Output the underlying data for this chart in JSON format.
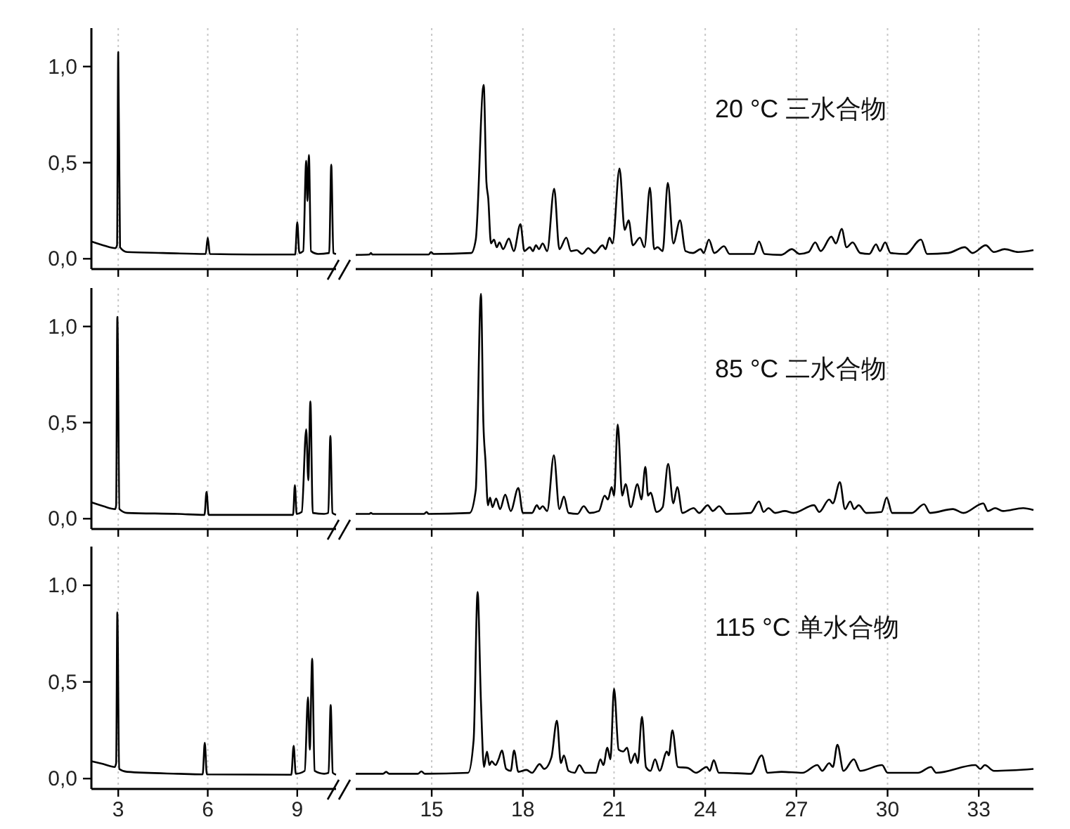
{
  "chart_data": [
    {
      "type": "line",
      "xlim": [
        2.1,
        10.3
      ],
      "ylim": [
        -0.05,
        1.2
      ],
      "xticks": [
        3,
        6,
        9
      ],
      "yticks": [
        {
          "value": 0,
          "label": "0,0"
        },
        {
          "value": 0.5,
          "label": "0,5"
        },
        {
          "value": 1,
          "label": "1,0"
        }
      ],
      "grid": "x",
      "tick_labels": "y",
      "series": [
        {
          "color": "#000000",
          "x": [
            2.1,
            2.5,
            2.9,
            2.96,
            3.0,
            3.06,
            3.3,
            4.5,
            5.93,
            6.0,
            6.07,
            7.5,
            8.93,
            9.0,
            9.07,
            9.2,
            9.3,
            9.34,
            9.39,
            9.46,
            9.7,
            10.07,
            10.14,
            10.21,
            10.3
          ],
          "values": [
            0.09,
            0.07,
            0.055,
            0.07,
            1.075,
            0.06,
            0.035,
            0.03,
            0.025,
            0.11,
            0.025,
            0.022,
            0.022,
            0.19,
            0.03,
            0.04,
            0.51,
            0.3,
            0.54,
            0.04,
            0.025,
            0.03,
            0.49,
            0.03,
            0.025
          ]
        }
      ]
    },
    {
      "type": "line",
      "xlim": [
        12.5,
        34.8
      ],
      "ylim": [
        -0.05,
        1.2
      ],
      "xticks": [
        15,
        18,
        21,
        24,
        27,
        30,
        33
      ],
      "grid": "x",
      "tick_labels": false,
      "annotations": [
        "20 °C 三水合物"
      ],
      "series": [
        {
          "color": "#000000",
          "x": [
            12.5,
            12.95,
            13.0,
            13.05,
            14.9,
            14.98,
            15.06,
            16.3,
            16.45,
            16.71,
            16.8,
            16.86,
            16.95,
            17.05,
            17.14,
            17.23,
            17.35,
            17.54,
            17.7,
            17.92,
            18.05,
            18.23,
            18.33,
            18.43,
            18.53,
            18.65,
            18.8,
            19.03,
            19.2,
            19.43,
            19.58,
            19.77,
            19.95,
            20.15,
            20.35,
            20.62,
            20.72,
            20.85,
            20.95,
            21.18,
            21.35,
            21.48,
            21.62,
            21.85,
            22.0,
            22.18,
            22.32,
            22.43,
            22.6,
            22.77,
            22.95,
            23.17,
            23.35,
            23.6,
            23.85,
            23.95,
            24.12,
            24.3,
            24.62,
            24.8,
            25.6,
            25.77,
            25.95,
            26.5,
            26.85,
            27.1,
            27.4,
            27.62,
            27.8,
            28.15,
            28.3,
            28.49,
            28.65,
            28.85,
            29.1,
            29.4,
            29.62,
            29.75,
            29.92,
            30.1,
            30.6,
            31.1,
            31.3,
            32.0,
            32.54,
            32.8,
            33.23,
            33.5,
            33.85,
            34.3,
            34.8
          ],
          "values": [
            0.02,
            0.022,
            0.03,
            0.022,
            0.022,
            0.035,
            0.025,
            0.03,
            0.1,
            0.905,
            0.4,
            0.315,
            0.08,
            0.1,
            0.06,
            0.085,
            0.05,
            0.105,
            0.04,
            0.18,
            0.04,
            0.06,
            0.04,
            0.07,
            0.05,
            0.08,
            0.04,
            0.365,
            0.05,
            0.11,
            0.04,
            0.045,
            0.025,
            0.055,
            0.03,
            0.07,
            0.05,
            0.11,
            0.08,
            0.47,
            0.15,
            0.2,
            0.07,
            0.11,
            0.06,
            0.37,
            0.05,
            0.06,
            0.04,
            0.395,
            0.08,
            0.2,
            0.04,
            0.03,
            0.05,
            0.03,
            0.1,
            0.03,
            0.065,
            0.025,
            0.025,
            0.09,
            0.025,
            0.02,
            0.05,
            0.025,
            0.035,
            0.085,
            0.04,
            0.115,
            0.08,
            0.155,
            0.06,
            0.085,
            0.03,
            0.025,
            0.075,
            0.04,
            0.085,
            0.03,
            0.025,
            0.1,
            0.025,
            0.03,
            0.06,
            0.03,
            0.07,
            0.035,
            0.05,
            0.035,
            0.045
          ]
        }
      ]
    },
    {
      "type": "line",
      "xlim": [
        2.1,
        10.3
      ],
      "ylim": [
        -0.05,
        1.2
      ],
      "xticks": [
        3,
        6,
        9
      ],
      "yticks": [
        {
          "value": 0,
          "label": "0,0"
        },
        {
          "value": 0.5,
          "label": "0,5"
        },
        {
          "value": 1,
          "label": "1,0"
        }
      ],
      "grid": "x",
      "tick_labels": "y",
      "series": [
        {
          "color": "#000000",
          "x": [
            2.1,
            2.5,
            2.9,
            2.93,
            2.97,
            3.04,
            3.3,
            5.0,
            5.89,
            5.96,
            6.03,
            8.8,
            8.86,
            8.92,
            8.98,
            9.15,
            9.3,
            9.37,
            9.44,
            9.52,
            9.9,
            10.04,
            10.11,
            10.18,
            10.3
          ],
          "values": [
            0.085,
            0.065,
            0.05,
            0.07,
            1.05,
            0.05,
            0.03,
            0.025,
            0.02,
            0.14,
            0.02,
            0.02,
            0.02,
            0.175,
            0.025,
            0.035,
            0.465,
            0.2,
            0.61,
            0.03,
            0.025,
            0.03,
            0.43,
            0.03,
            0.02
          ]
        }
      ]
    },
    {
      "type": "line",
      "xlim": [
        12.5,
        34.8
      ],
      "ylim": [
        -0.05,
        1.2
      ],
      "xticks": [
        15,
        18,
        21,
        24,
        27,
        30,
        33
      ],
      "grid": "x",
      "tick_labels": false,
      "annotations": [
        "85 °C 二水合物"
      ],
      "series": [
        {
          "color": "#000000",
          "x": [
            12.5,
            12.95,
            13.0,
            13.06,
            14.75,
            14.83,
            14.9,
            16.25,
            16.45,
            16.62,
            16.7,
            16.77,
            16.85,
            16.92,
            17.0,
            17.12,
            17.25,
            17.42,
            17.6,
            17.85,
            18.0,
            18.3,
            18.46,
            18.55,
            18.65,
            18.8,
            19.02,
            19.2,
            19.35,
            19.5,
            19.8,
            20.0,
            20.2,
            20.5,
            20.69,
            20.8,
            20.92,
            21.0,
            21.12,
            21.27,
            21.38,
            21.55,
            21.77,
            21.9,
            22.03,
            22.12,
            22.2,
            22.4,
            22.6,
            22.78,
            22.95,
            23.08,
            23.25,
            23.62,
            23.8,
            24.08,
            24.25,
            24.46,
            24.7,
            25.5,
            25.77,
            25.92,
            26.08,
            26.3,
            26.62,
            26.9,
            27.58,
            27.75,
            28.08,
            28.2,
            28.43,
            28.6,
            28.77,
            28.9,
            29.05,
            29.3,
            29.8,
            29.97,
            30.15,
            30.8,
            31.2,
            31.4,
            32.15,
            32.5,
            33.15,
            33.3,
            33.54,
            33.8,
            34.46,
            34.8
          ],
          "values": [
            0.025,
            0.025,
            0.03,
            0.025,
            0.025,
            0.035,
            0.025,
            0.03,
            0.15,
            1.17,
            0.5,
            0.3,
            0.07,
            0.11,
            0.06,
            0.105,
            0.05,
            0.125,
            0.04,
            0.16,
            0.03,
            0.03,
            0.07,
            0.05,
            0.065,
            0.04,
            0.33,
            0.05,
            0.115,
            0.03,
            0.025,
            0.065,
            0.03,
            0.04,
            0.12,
            0.1,
            0.165,
            0.12,
            0.49,
            0.12,
            0.18,
            0.06,
            0.18,
            0.1,
            0.27,
            0.12,
            0.135,
            0.035,
            0.06,
            0.285,
            0.08,
            0.165,
            0.03,
            0.055,
            0.03,
            0.07,
            0.04,
            0.065,
            0.025,
            0.03,
            0.09,
            0.035,
            0.055,
            0.03,
            0.04,
            0.03,
            0.07,
            0.035,
            0.1,
            0.08,
            0.19,
            0.05,
            0.09,
            0.05,
            0.07,
            0.03,
            0.035,
            0.11,
            0.03,
            0.03,
            0.075,
            0.03,
            0.05,
            0.03,
            0.08,
            0.04,
            0.055,
            0.04,
            0.055,
            0.045
          ]
        }
      ]
    },
    {
      "type": "line",
      "xlim": [
        2.1,
        10.3
      ],
      "ylim": [
        -0.05,
        1.2
      ],
      "xticks": [
        3,
        6,
        9
      ],
      "yticks": [
        {
          "value": 0,
          "label": "0,0"
        },
        {
          "value": 0.5,
          "label": "0,5"
        },
        {
          "value": 1,
          "label": "1,0"
        }
      ],
      "grid": "x",
      "series": [
        {
          "color": "#000000",
          "x": [
            2.1,
            2.5,
            2.88,
            2.93,
            2.97,
            3.03,
            3.3,
            5.0,
            5.83,
            5.9,
            5.97,
            8.8,
            8.88,
            8.95,
            9.25,
            9.36,
            9.42,
            9.5,
            9.58,
            9.9,
            10.05,
            10.12,
            10.19,
            10.3
          ],
          "values": [
            0.09,
            0.075,
            0.06,
            0.08,
            0.86,
            0.05,
            0.035,
            0.025,
            0.022,
            0.185,
            0.022,
            0.02,
            0.17,
            0.025,
            0.04,
            0.42,
            0.15,
            0.62,
            0.04,
            0.025,
            0.03,
            0.38,
            0.03,
            0.02
          ]
        }
      ]
    },
    {
      "type": "line",
      "xlim": [
        12.5,
        34.8
      ],
      "ylim": [
        -0.05,
        1.2
      ],
      "xticks": [
        15,
        18,
        21,
        24,
        27,
        30,
        33
      ],
      "grid": "x",
      "tick_labels": "x",
      "annotations": [
        "115 °C 单水合物"
      ],
      "series": [
        {
          "color": "#000000",
          "x": [
            12.5,
            13.4,
            13.5,
            13.6,
            14.55,
            14.66,
            14.77,
            16.2,
            16.38,
            16.51,
            16.62,
            16.72,
            16.82,
            16.9,
            16.97,
            17.1,
            17.2,
            17.31,
            17.45,
            17.6,
            17.71,
            17.85,
            18.12,
            18.3,
            18.55,
            18.7,
            18.94,
            19.12,
            19.25,
            19.35,
            19.5,
            19.7,
            19.86,
            20.05,
            20.4,
            20.55,
            20.65,
            20.78,
            20.88,
            21.0,
            21.15,
            21.3,
            21.43,
            21.55,
            21.69,
            21.78,
            21.92,
            22.05,
            22.2,
            22.35,
            22.5,
            22.74,
            22.8,
            22.92,
            23.1,
            23.43,
            23.7,
            24.05,
            24.15,
            24.28,
            24.45,
            24.6,
            25.5,
            25.86,
            26.05,
            26.51,
            27.2,
            27.69,
            27.85,
            28.08,
            28.2,
            28.35,
            28.55,
            28.89,
            29.1,
            29.82,
            30.0,
            31.0,
            31.43,
            31.6,
            32.89,
            33.05,
            33.2,
            33.5,
            34.8
          ],
          "values": [
            0.025,
            0.025,
            0.035,
            0.025,
            0.025,
            0.037,
            0.025,
            0.03,
            0.2,
            0.965,
            0.4,
            0.06,
            0.14,
            0.07,
            0.09,
            0.07,
            0.1,
            0.145,
            0.05,
            0.04,
            0.145,
            0.035,
            0.045,
            0.03,
            0.075,
            0.05,
            0.11,
            0.3,
            0.08,
            0.12,
            0.04,
            0.03,
            0.07,
            0.03,
            0.03,
            0.1,
            0.07,
            0.16,
            0.1,
            0.465,
            0.15,
            0.14,
            0.16,
            0.08,
            0.13,
            0.08,
            0.32,
            0.06,
            0.04,
            0.1,
            0.04,
            0.14,
            0.12,
            0.25,
            0.06,
            0.055,
            0.03,
            0.06,
            0.04,
            0.095,
            0.03,
            0.03,
            0.025,
            0.12,
            0.03,
            0.035,
            0.03,
            0.07,
            0.04,
            0.08,
            0.06,
            0.175,
            0.04,
            0.1,
            0.04,
            0.07,
            0.03,
            0.03,
            0.06,
            0.03,
            0.07,
            0.05,
            0.07,
            0.04,
            0.05
          ]
        }
      ]
    }
  ]
}
